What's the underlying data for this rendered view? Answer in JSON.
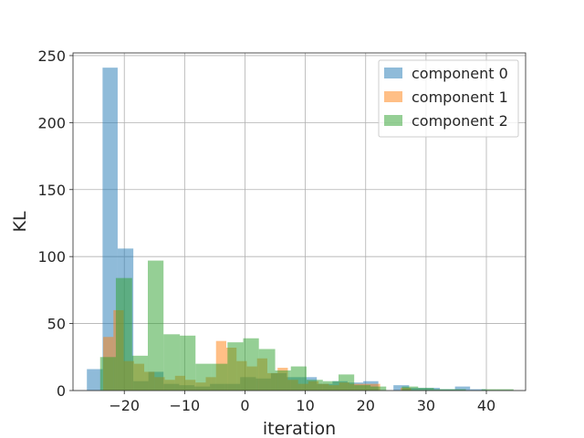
{
  "chart_data": {
    "type": "histogram",
    "title": "",
    "xlabel": "iteration",
    "ylabel": "KL",
    "xlim": [
      -28.5,
      46.5
    ],
    "ylim": [
      0,
      252
    ],
    "xticks": [
      -20,
      -10,
      0,
      10,
      20,
      30,
      40
    ],
    "yticks": [
      0,
      50,
      100,
      150,
      200,
      250
    ],
    "xtick_labels": [
      "−20",
      "−10",
      "0",
      "10",
      "20",
      "30",
      "40"
    ],
    "ytick_labels": [
      "0",
      "50",
      "100",
      "150",
      "200",
      "250"
    ],
    "grid": true,
    "legend_position": "top-right",
    "alpha": 0.5,
    "series": [
      {
        "name": "component 0",
        "color": "#1f77b4",
        "bins": [
          [
            -26.2,
            -23.6,
            16
          ],
          [
            -23.6,
            -21.1,
            241
          ],
          [
            -21.1,
            -18.5,
            106
          ],
          [
            -18.5,
            -16.0,
            7
          ],
          [
            -16.0,
            -13.5,
            14
          ],
          [
            -13.5,
            -10.9,
            5
          ],
          [
            -10.9,
            -8.4,
            4
          ],
          [
            -8.4,
            -5.8,
            3
          ],
          [
            -5.8,
            -3.3,
            5
          ],
          [
            -3.3,
            -0.8,
            5
          ],
          [
            -0.8,
            1.8,
            10
          ],
          [
            1.8,
            4.3,
            9
          ],
          [
            4.3,
            6.9,
            13
          ],
          [
            6.9,
            9.4,
            10
          ],
          [
            9.4,
            11.9,
            10
          ],
          [
            11.9,
            14.5,
            5
          ],
          [
            14.5,
            17.0,
            7
          ],
          [
            17.0,
            19.6,
            6
          ],
          [
            19.6,
            22.1,
            7
          ],
          [
            22.1,
            24.6,
            0
          ],
          [
            24.6,
            27.2,
            4
          ],
          [
            27.2,
            29.7,
            2
          ],
          [
            29.7,
            32.3,
            2
          ],
          [
            32.3,
            34.8,
            1
          ],
          [
            34.8,
            37.3,
            3
          ],
          [
            37.3,
            39.9,
            1
          ]
        ]
      },
      {
        "name": "component 1",
        "color": "#ff7f0e",
        "bins": [
          [
            -23.5,
            -21.8,
            40
          ],
          [
            -21.8,
            -20.1,
            60
          ],
          [
            -20.1,
            -18.4,
            22
          ],
          [
            -18.4,
            -16.7,
            20
          ],
          [
            -16.7,
            -15.0,
            14
          ],
          [
            -15.0,
            -13.3,
            10
          ],
          [
            -13.3,
            -11.6,
            8
          ],
          [
            -11.6,
            -9.9,
            11
          ],
          [
            -9.9,
            -8.2,
            8
          ],
          [
            -8.2,
            -6.5,
            6
          ],
          [
            -6.5,
            -4.8,
            10
          ],
          [
            -4.8,
            -3.1,
            37
          ],
          [
            -3.1,
            -1.4,
            32
          ],
          [
            -1.4,
            0.3,
            22
          ],
          [
            0.3,
            2.0,
            18
          ],
          [
            2.0,
            3.7,
            24
          ],
          [
            3.7,
            5.4,
            13
          ],
          [
            5.4,
            7.1,
            17
          ],
          [
            7.1,
            8.8,
            8
          ],
          [
            8.8,
            10.5,
            5
          ],
          [
            10.5,
            12.2,
            7
          ],
          [
            12.2,
            13.9,
            5
          ],
          [
            13.9,
            15.6,
            4
          ],
          [
            15.6,
            17.3,
            6
          ],
          [
            17.3,
            19.0,
            5
          ],
          [
            19.0,
            20.7,
            5
          ],
          [
            20.7,
            22.4,
            5
          ],
          [
            22.4,
            24.1,
            0
          ],
          [
            24.1,
            25.8,
            0
          ],
          [
            25.8,
            27.5,
            2
          ]
        ]
      },
      {
        "name": "component 2",
        "color": "#2ca02c",
        "bins": [
          [
            -24.0,
            -21.4,
            25
          ],
          [
            -21.4,
            -18.7,
            84
          ],
          [
            -18.7,
            -16.1,
            26
          ],
          [
            -16.1,
            -13.5,
            97
          ],
          [
            -13.5,
            -10.8,
            42
          ],
          [
            -10.8,
            -8.2,
            41
          ],
          [
            -8.2,
            -5.6,
            20
          ],
          [
            -5.6,
            -2.9,
            20
          ],
          [
            -2.9,
            -0.3,
            36
          ],
          [
            -0.3,
            2.3,
            39
          ],
          [
            2.3,
            5.0,
            31
          ],
          [
            5.0,
            7.6,
            15
          ],
          [
            7.6,
            10.2,
            18
          ],
          [
            10.2,
            12.9,
            8
          ],
          [
            12.9,
            15.5,
            7
          ],
          [
            15.5,
            18.1,
            12
          ],
          [
            18.1,
            20.8,
            4
          ],
          [
            20.8,
            23.4,
            3
          ],
          [
            23.4,
            26.0,
            0
          ],
          [
            26.0,
            28.7,
            3
          ],
          [
            28.7,
            31.3,
            2
          ],
          [
            31.3,
            33.9,
            1
          ],
          [
            33.9,
            36.6,
            1
          ],
          [
            36.6,
            39.2,
            0
          ],
          [
            39.2,
            41.8,
            1
          ],
          [
            41.8,
            44.5,
            1
          ]
        ]
      }
    ]
  }
}
